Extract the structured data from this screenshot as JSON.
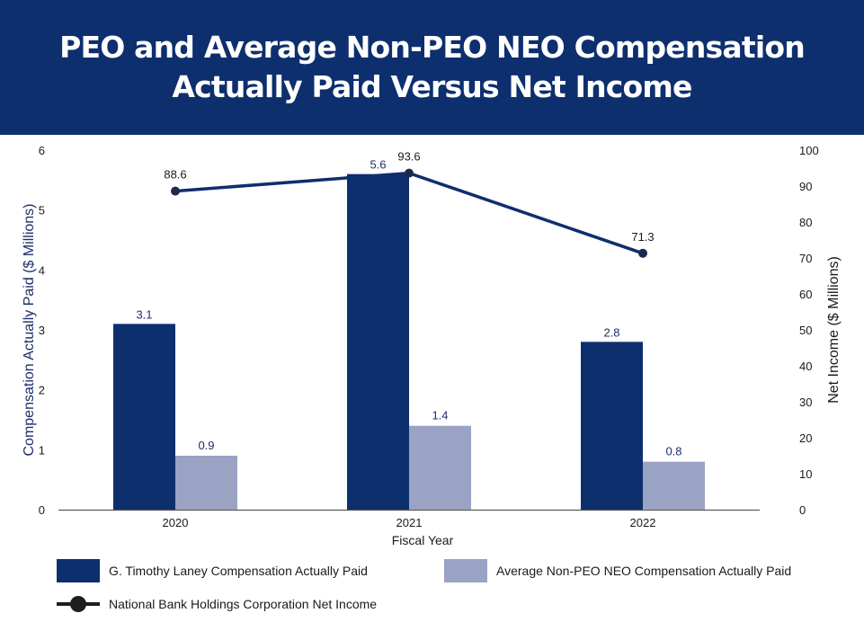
{
  "header": {
    "title_line1": "PEO and Average Non-PEO NEO Compensation",
    "title_line2": "Actually Paid Versus Net Income"
  },
  "chart_data": {
    "type": "bar",
    "categories": [
      "2020",
      "2021",
      "2022"
    ],
    "xlabel": "Fiscal Year",
    "ylabel_left": "Compensation Actually Paid ($ Millions)",
    "ylabel_right": "Net Income ($ Millions)",
    "ylim_left": [
      0,
      6
    ],
    "ylim_right": [
      0,
      100
    ],
    "yticks_left": [
      0,
      1,
      2,
      3,
      4,
      5,
      6
    ],
    "yticks_right": [
      0,
      10,
      20,
      30,
      40,
      50,
      60,
      70,
      80,
      90,
      100
    ],
    "series": [
      {
        "name": "G. Timothy Laney Compensation Actually Paid",
        "type": "bar",
        "axis": "left",
        "color": "#0e2f6e",
        "values": [
          3.1,
          5.6,
          2.8
        ],
        "labels": [
          "3.1",
          "5.6",
          "2.8"
        ]
      },
      {
        "name": "Average Non-PEO NEO Compensation Actually Paid",
        "type": "bar",
        "axis": "left",
        "color": "#9aa3c4",
        "values": [
          0.9,
          1.4,
          0.8
        ],
        "labels": [
          "0.9",
          "1.4",
          "0.8"
        ]
      },
      {
        "name": "National Bank Holdings Corporation Net Income",
        "type": "line",
        "axis": "right",
        "color": "#0e2f6e",
        "values": [
          88.6,
          93.6,
          71.3
        ],
        "labels": [
          "88.6",
          "93.6",
          "71.3"
        ]
      }
    ],
    "grid": false,
    "legend_position": "bottom"
  },
  "legend": {
    "item1": "G. Timothy Laney Compensation Actually Paid",
    "item2": "Average Non-PEO NEO Compensation Actually Paid",
    "item3": "National Bank Holdings Corporation Net Income"
  },
  "colors": {
    "banner": "#0e2f6e",
    "peo_bar": "#0e2f6e",
    "neo_bar": "#9aa3c4",
    "line": "#0e2f6e",
    "legend_line": "#1e1e1e"
  }
}
